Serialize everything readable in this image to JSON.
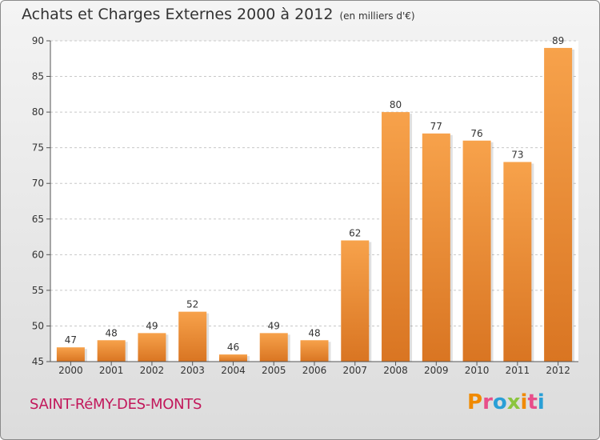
{
  "chart_data": {
    "type": "bar",
    "title": "Achats et Charges Externes 2000 à 2012",
    "subtitle": "(en milliers d'€)",
    "categories": [
      "2000",
      "2001",
      "2002",
      "2003",
      "2004",
      "2005",
      "2006",
      "2007",
      "2008",
      "2009",
      "2010",
      "2011",
      "2012"
    ],
    "values": [
      47,
      48,
      49,
      52,
      46,
      49,
      48,
      62,
      80,
      77,
      76,
      73,
      89
    ],
    "ylim": [
      45,
      90
    ],
    "yticks": [
      45,
      50,
      55,
      60,
      65,
      70,
      75,
      80,
      85,
      90
    ],
    "grid": "horizontal dashed",
    "colors": {
      "bar_light": "#f7a24b",
      "bar_dark": "#d97522"
    }
  },
  "footer": {
    "commune": "SAINT-RéMY-DES-MONTS",
    "brand": "Proxiti",
    "brand_colors": [
      "#f08a00",
      "#e84e8a",
      "#2a9fd6",
      "#8bc53f",
      "#f08a00",
      "#e84e8a",
      "#2a9fd6"
    ]
  }
}
